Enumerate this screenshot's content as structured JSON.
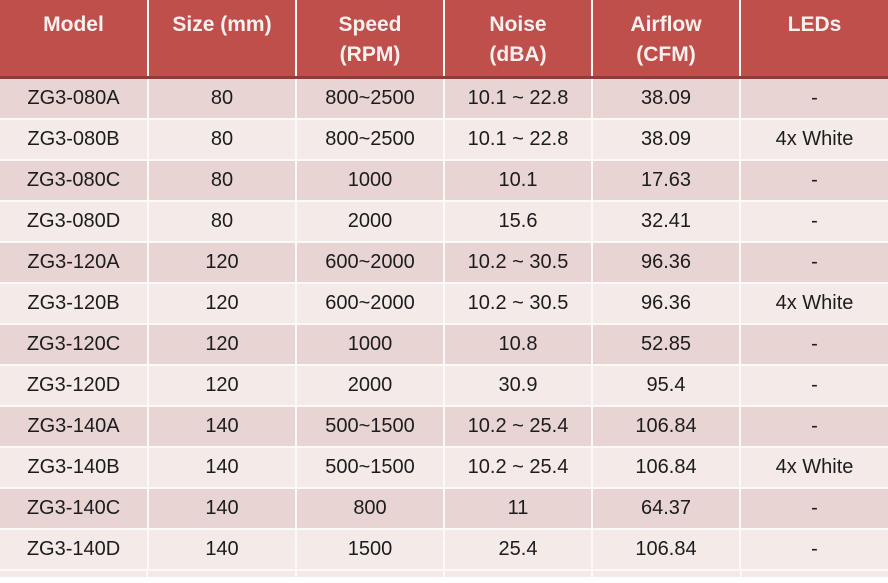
{
  "colors": {
    "header_bg": "#be4f4b",
    "header_text": "#f9f0ef",
    "header_bottom_border": "#8f3b38",
    "row_odd_bg": "#e8d4d2",
    "row_even_bg": "#f4ebe9",
    "grid_line": "#fcfaf9",
    "body_text": "#1c1c1c",
    "partial_band_bg": "#f3eae8"
  },
  "chart_data": {
    "type": "table",
    "title": "",
    "columns": [
      "Model",
      "Size (mm)",
      "Speed (RPM)",
      "Noise (dBA)",
      "Airflow (CFM)",
      "LEDs"
    ],
    "column_ids": [
      "model",
      "size",
      "speed",
      "noise",
      "airflow",
      "leds"
    ],
    "header_lines": [
      [
        "Model"
      ],
      [
        "Size (mm)"
      ],
      [
        "Speed",
        "(RPM)"
      ],
      [
        "Noise",
        "(dBA)"
      ],
      [
        "Airflow",
        "(CFM)"
      ],
      [
        "LEDs"
      ]
    ],
    "rows": [
      [
        "ZG3-080A",
        "80",
        "800~2500",
        "10.1 ~ 22.8",
        "38.09",
        "-"
      ],
      [
        "ZG3-080B",
        "80",
        "800~2500",
        "10.1 ~ 22.8",
        "38.09",
        "4x White"
      ],
      [
        "ZG3-080C",
        "80",
        "1000",
        "10.1",
        "17.63",
        "-"
      ],
      [
        "ZG3-080D",
        "80",
        "2000",
        "15.6",
        "32.41",
        "-"
      ],
      [
        "ZG3-120A",
        "120",
        "600~2000",
        "10.2 ~ 30.5",
        "96.36",
        "-"
      ],
      [
        "ZG3-120B",
        "120",
        "600~2000",
        "10.2 ~ 30.5",
        "96.36",
        "4x White"
      ],
      [
        "ZG3-120C",
        "120",
        "1000",
        "10.8",
        "52.85",
        "-"
      ],
      [
        "ZG3-120D",
        "120",
        "2000",
        "30.9",
        "95.4",
        "-"
      ],
      [
        "ZG3-140A",
        "140",
        "500~1500",
        "10.2 ~ 25.4",
        "106.84",
        "-"
      ],
      [
        "ZG3-140B",
        "140",
        "500~1500",
        "10.2 ~ 25.4",
        "106.84",
        "4x White"
      ],
      [
        "ZG3-140C",
        "140",
        "800",
        "11",
        "64.37",
        "-"
      ],
      [
        "ZG3-140D",
        "140",
        "1500",
        "25.4",
        "106.84",
        "-"
      ]
    ]
  }
}
